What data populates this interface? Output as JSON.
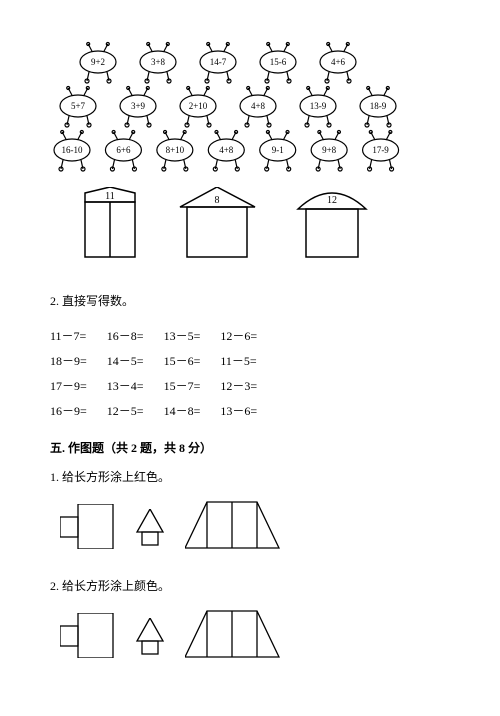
{
  "figure1": {
    "rows": [
      [
        "9+2",
        "3+8",
        "14-7",
        "15-6",
        "4+6"
      ],
      [
        "5+7",
        "3+9",
        "2+10",
        "4+8",
        "13-9",
        "18-9"
      ],
      [
        "16-10",
        "6+6",
        "8+10",
        "4+8",
        "9-1",
        "9+8",
        "17-9"
      ]
    ],
    "houses": [
      "11",
      "8",
      "12"
    ],
    "stroke": "#000000"
  },
  "q2": {
    "title": "2. 直接写得数。",
    "rows": [
      [
        "11－7=",
        "16－8=",
        "13－5=",
        "12－6="
      ],
      [
        "18－9=",
        "14－5=",
        "15－6=",
        "11－5="
      ],
      [
        "17－9=",
        "13－4=",
        "15－7=",
        "12－3="
      ],
      [
        "16－9=",
        "12－5=",
        "14－8=",
        "13－6="
      ]
    ]
  },
  "section5": {
    "heading": "五. 作图题（共 2 题，共 8 分）",
    "q1": "1. 给长方形涂上红色。",
    "q2": "2. 给长方形涂上颜色。"
  }
}
